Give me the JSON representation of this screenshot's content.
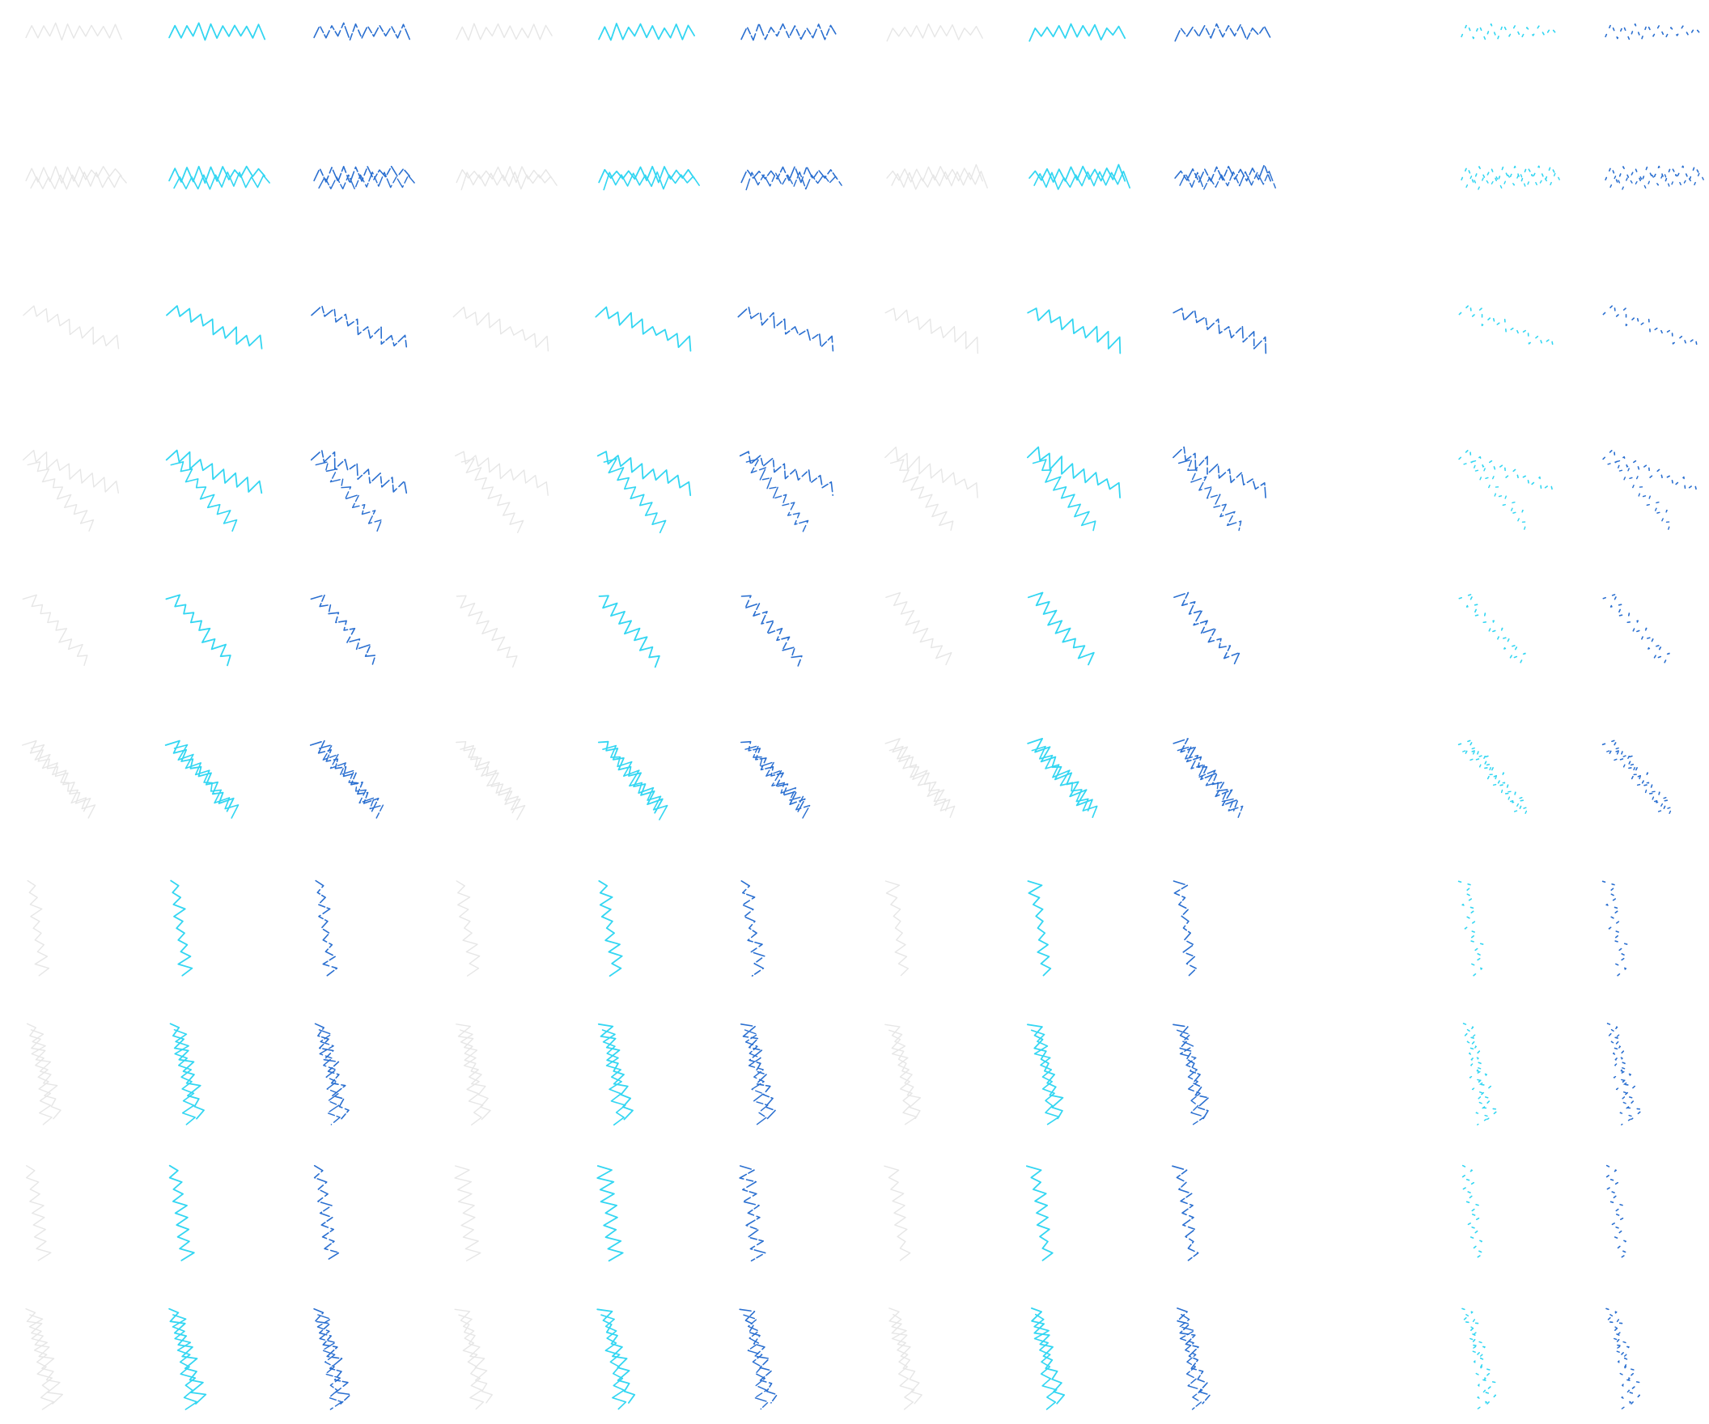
{
  "sheet": {
    "background": "#ffffff",
    "row_count": 10,
    "column_count": 12,
    "column_groups": 3,
    "empty_column_index": 9,
    "row_orientations": [
      "horizontal",
      "horizontal",
      "diagonal",
      "diagonal",
      "diagonal",
      "diagonal",
      "vertical",
      "vertical",
      "vertical",
      "vertical"
    ],
    "styles": {
      "faint": {
        "color": "#e6e6e6",
        "style": "solid"
      },
      "cyan": {
        "color": "#33d6f2",
        "style": "solid"
      },
      "blue": {
        "color": "#2a6fd0",
        "style": "broken"
      },
      "cyan_dotted": {
        "color": "#33d6f2",
        "style": "dotted"
      },
      "blue_dotted": {
        "color": "#2a6fd0",
        "style": "dotted"
      }
    },
    "column_styles": [
      "faint",
      "cyan",
      "blue",
      "faint",
      "cyan",
      "blue",
      "faint",
      "cyan",
      "blue",
      "",
      "cyan_dotted",
      "blue_dotted"
    ]
  }
}
